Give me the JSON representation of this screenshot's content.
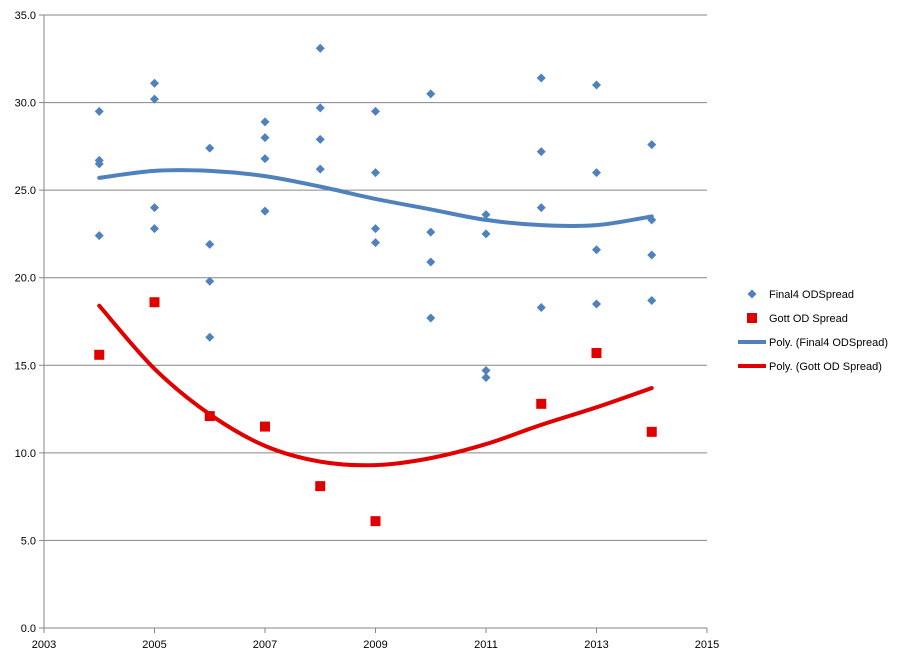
{
  "chart_data": {
    "type": "scatter",
    "title": "",
    "xlabel": "",
    "ylabel": "",
    "xlim": [
      2003,
      2015
    ],
    "ylim": [
      0,
      35
    ],
    "x_ticks": [
      "2003",
      "2005",
      "2007",
      "2009",
      "2011",
      "2013",
      "2015"
    ],
    "x_tick_values": [
      2003,
      2005,
      2007,
      2009,
      2011,
      2013,
      2015
    ],
    "y_ticks": [
      "0.0",
      "5.0",
      "10.0",
      "15.0",
      "20.0",
      "25.0",
      "30.0",
      "35.0"
    ],
    "y_tick_values": [
      0,
      5,
      10,
      15,
      20,
      25,
      30,
      35
    ],
    "grid": "horizontal",
    "legend_position": "right",
    "series": [
      {
        "name": "Final4 ODSpread",
        "marker": "diamond",
        "color": "#4F81BD",
        "points": [
          [
            2004,
            29.5
          ],
          [
            2004,
            26.7
          ],
          [
            2004,
            26.5
          ],
          [
            2004,
            22.4
          ],
          [
            2005,
            31.1
          ],
          [
            2005,
            30.2
          ],
          [
            2005,
            24.0
          ],
          [
            2005,
            22.8
          ],
          [
            2006,
            27.4
          ],
          [
            2006,
            21.9
          ],
          [
            2006,
            19.8
          ],
          [
            2006,
            16.6
          ],
          [
            2007,
            28.9
          ],
          [
            2007,
            28.0
          ],
          [
            2007,
            26.8
          ],
          [
            2007,
            23.8
          ],
          [
            2008,
            33.1
          ],
          [
            2008,
            29.7
          ],
          [
            2008,
            27.9
          ],
          [
            2008,
            26.2
          ],
          [
            2009,
            29.5
          ],
          [
            2009,
            26.0
          ],
          [
            2009,
            22.8
          ],
          [
            2009,
            22.0
          ],
          [
            2010,
            30.5
          ],
          [
            2010,
            22.6
          ],
          [
            2010,
            20.9
          ],
          [
            2010,
            17.7
          ],
          [
            2011,
            23.6
          ],
          [
            2011,
            22.5
          ],
          [
            2011,
            14.7
          ],
          [
            2011,
            14.3
          ],
          [
            2012,
            31.4
          ],
          [
            2012,
            27.2
          ],
          [
            2012,
            24.0
          ],
          [
            2012,
            18.3
          ],
          [
            2013,
            31.0
          ],
          [
            2013,
            26.0
          ],
          [
            2013,
            21.6
          ],
          [
            2013,
            18.5
          ],
          [
            2014,
            27.6
          ],
          [
            2014,
            23.3
          ],
          [
            2014,
            21.3
          ],
          [
            2014,
            18.7
          ]
        ]
      },
      {
        "name": "Gott OD Spread",
        "marker": "square",
        "color": "#E00000",
        "points": [
          [
            2004,
            15.6
          ],
          [
            2005,
            18.6
          ],
          [
            2006,
            12.1
          ],
          [
            2007,
            11.5
          ],
          [
            2008,
            8.1
          ],
          [
            2009,
            6.1
          ],
          [
            2012,
            12.8
          ],
          [
            2013,
            15.7
          ],
          [
            2014,
            11.2
          ]
        ]
      },
      {
        "name": "Poly. (Final4 ODSpread)",
        "type": "trendline",
        "color": "#4F81BD",
        "points": [
          [
            2004,
            25.7
          ],
          [
            2005,
            26.1
          ],
          [
            2006,
            26.1
          ],
          [
            2007,
            25.8
          ],
          [
            2008,
            25.2
          ],
          [
            2009,
            24.5
          ],
          [
            2010,
            23.9
          ],
          [
            2011,
            23.3
          ],
          [
            2012,
            23.0
          ],
          [
            2013,
            23.0
          ],
          [
            2014,
            23.5
          ]
        ]
      },
      {
        "name": "Poly. (Gott OD Spread)",
        "type": "trendline",
        "color": "#E00000",
        "points": [
          [
            2004,
            18.4
          ],
          [
            2005,
            14.8
          ],
          [
            2006,
            12.2
          ],
          [
            2007,
            10.4
          ],
          [
            2008,
            9.5
          ],
          [
            2009,
            9.3
          ],
          [
            2010,
            9.7
          ],
          [
            2011,
            10.5
          ],
          [
            2012,
            11.6
          ],
          [
            2013,
            12.6
          ],
          [
            2014,
            13.7
          ]
        ]
      }
    ]
  }
}
